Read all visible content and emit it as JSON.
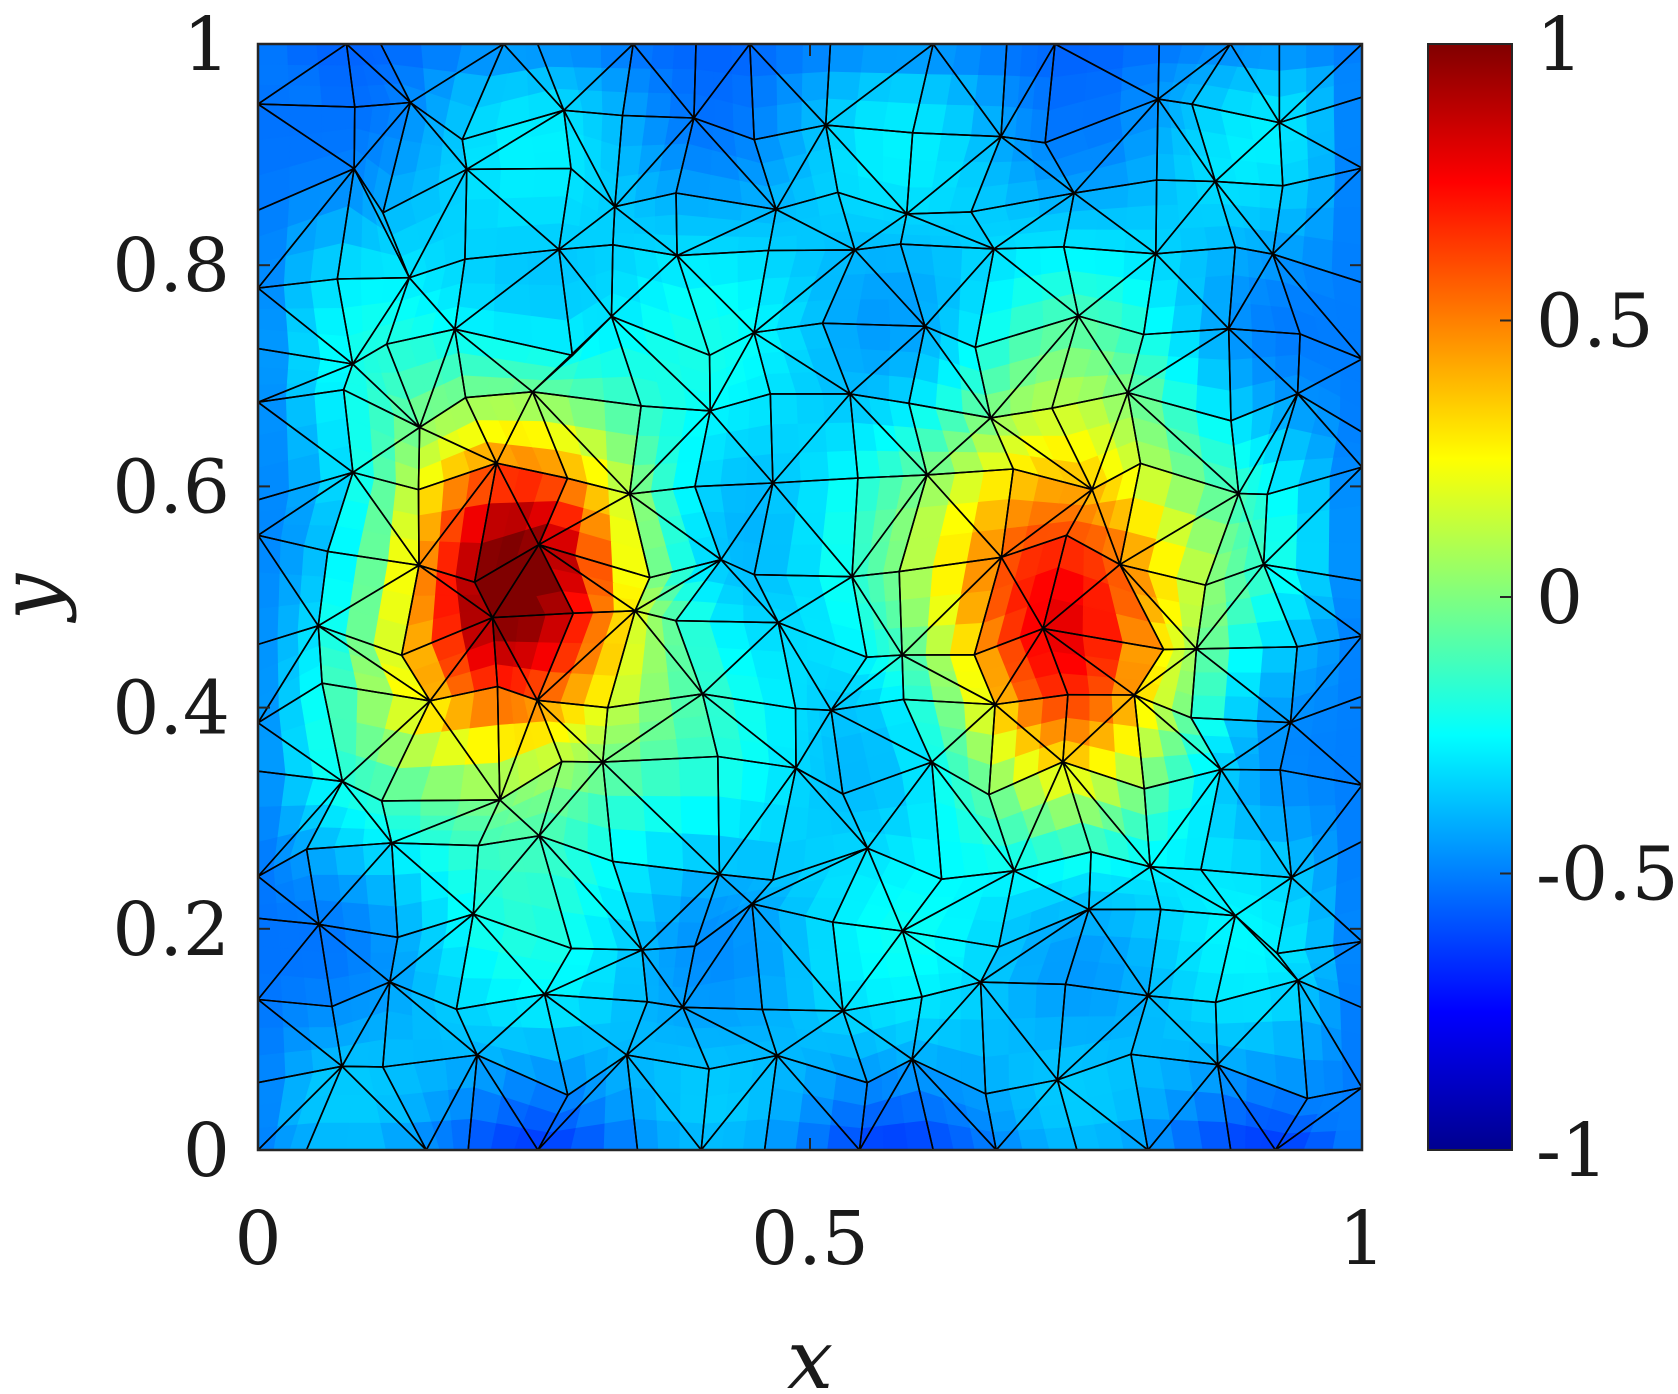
{
  "chart_data": {
    "type": "heatmap",
    "title": "",
    "xlabel": "x",
    "ylabel": "y",
    "xlim": [
      0,
      1
    ],
    "ylim": [
      0,
      1
    ],
    "x_ticks": [
      0,
      0.5,
      1
    ],
    "x_tick_labels": [
      "0",
      "0.5",
      "1"
    ],
    "y_ticks": [
      0,
      0.2,
      0.4,
      0.6,
      0.8,
      1
    ],
    "y_tick_labels": [
      "0",
      "0.2",
      "0.4",
      "0.6",
      "0.8",
      "1"
    ],
    "colorbar": {
      "colormap": "jet",
      "clim": [
        -1,
        1
      ],
      "ticks": [
        -1,
        -0.5,
        0,
        0.5,
        1
      ],
      "tick_labels": [
        "-1",
        "-0.5",
        "0",
        "0.5",
        "1"
      ]
    },
    "field": {
      "peaks": [
        {
          "x": 0.23,
          "y": 0.5,
          "value": 1.0
        },
        {
          "x": 0.73,
          "y": 0.5,
          "value": 0.85
        }
      ],
      "background_value": -0.35,
      "trough_value": -0.6
    },
    "mesh": {
      "element": "triangle",
      "edge_color": "#000000",
      "approx_node_spacing": 0.065
    },
    "grid": false,
    "legend": "none"
  }
}
